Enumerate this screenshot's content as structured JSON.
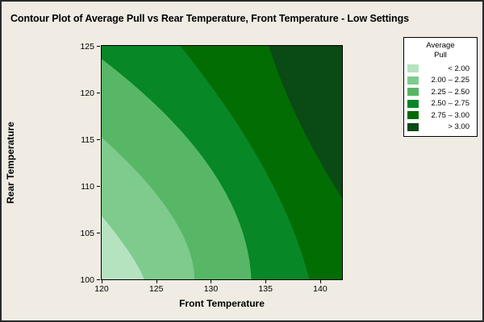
{
  "colors": {
    "figure_background": "#f0ece3",
    "outer_border": "#2a2a2a",
    "plot_frame": "#000000",
    "legend_background": "#ffffff",
    "text": "#000000"
  },
  "chart_data": {
    "type": "contour",
    "title": "Contour Plot of Average Pull vs Rear Temperature, Front Temperature - Low Settings",
    "xlabel": "Front Temperature",
    "ylabel": "Rear Temperature",
    "xlim": [
      120,
      142
    ],
    "ylim": [
      100,
      125
    ],
    "x_ticks": [
      120,
      125,
      130,
      135,
      140
    ],
    "y_ticks": [
      100,
      105,
      110,
      115,
      120,
      125
    ],
    "grid": false,
    "legend": {
      "position": "top-right",
      "title_lines": [
        "Average",
        "Pull"
      ]
    },
    "bands": [
      {
        "label": "<  2.00",
        "color": "#b5e3c0"
      },
      {
        "label": "2.00  –  2.25",
        "color": "#7ecb8d"
      },
      {
        "label": "2.25  –  2.50",
        "color": "#58b766"
      },
      {
        "label": "2.50  –  2.75",
        "color": "#088727"
      },
      {
        "label": "2.75  –  3.00",
        "color": "#026d02"
      },
      {
        "label": ">  3.00",
        "color": "#0a4a15"
      }
    ],
    "contour_boundaries": [
      {
        "level": 2.0,
        "start": [
          120.0,
          106.8
        ],
        "ctrl": [
          123.1,
          102.4
        ],
        "end": [
          123.9,
          100.0
        ]
      },
      {
        "level": 2.25,
        "start": [
          120.0,
          115.2
        ],
        "ctrl": [
          128.4,
          106.4
        ],
        "end": [
          128.5,
          100.0
        ]
      },
      {
        "level": 2.5,
        "start": [
          120.0,
          123.6
        ],
        "ctrl": [
          133.2,
          111.8
        ],
        "end": [
          133.7,
          100.0
        ]
      },
      {
        "level": 2.75,
        "start": [
          127.2,
          125.0
        ],
        "ctrl": [
          136.5,
          111.5
        ],
        "end": [
          139.0,
          100.0
        ]
      },
      {
        "level": 3.0,
        "start": [
          135.3,
          125.0
        ],
        "ctrl": [
          137.4,
          117.2
        ],
        "end": [
          142.0,
          108.7
        ]
      }
    ]
  }
}
